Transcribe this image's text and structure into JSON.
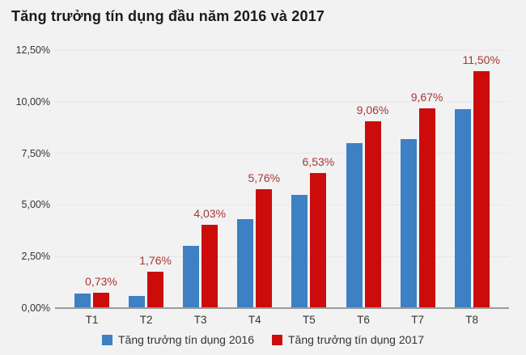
{
  "title": "Tăng trưởng tín dụng đầu năm 2016 và 2017",
  "colors": {
    "background": "#f2f2f2",
    "series_2016": "#3d80c4",
    "series_2017": "#cc0b0b",
    "data_label_text": "#a83535",
    "axis_line": "#9a9a9a",
    "gridline": "#e7e7e8",
    "tick_text": "#333333"
  },
  "chart_data": {
    "type": "bar",
    "title": "Tăng trưởng tín dụng đầu năm 2016 và 2017",
    "categories": [
      "T1",
      "T2",
      "T3",
      "T4",
      "T5",
      "T6",
      "T7",
      "T8"
    ],
    "series": [
      {
        "name": "Tăng trưởng tín dụng 2016",
        "color": "#3d80c4",
        "values": [
          0.72,
          0.58,
          3.0,
          4.3,
          5.48,
          8.0,
          8.2,
          9.64
        ]
      },
      {
        "name": "Tăng trưởng tín dụng 2017",
        "color": "#cc0b0b",
        "values": [
          0.73,
          1.76,
          4.03,
          5.76,
          6.53,
          9.06,
          9.67,
          11.5
        ],
        "labels": [
          "0,73%",
          "1,76%",
          "4,03%",
          "5,76%",
          "6,53%",
          "9,06%",
          "9,67%",
          "11,50%"
        ]
      }
    ],
    "xlabel": "",
    "ylabel": "",
    "ylim": [
      0,
      12.5
    ],
    "y_tick_step": 2.5,
    "y_tick_labels": [
      "0,00%",
      "2,50%",
      "5,00%",
      "7,50%",
      "10,00%",
      "12,50%"
    ],
    "grid": true,
    "legend_position": "bottom",
    "data_labels_on": "series 2017 only"
  },
  "legend": {
    "item_2016": "Tăng trưởng tín dụng 2016",
    "item_2017": "Tăng trưởng tín dụng 2017"
  }
}
